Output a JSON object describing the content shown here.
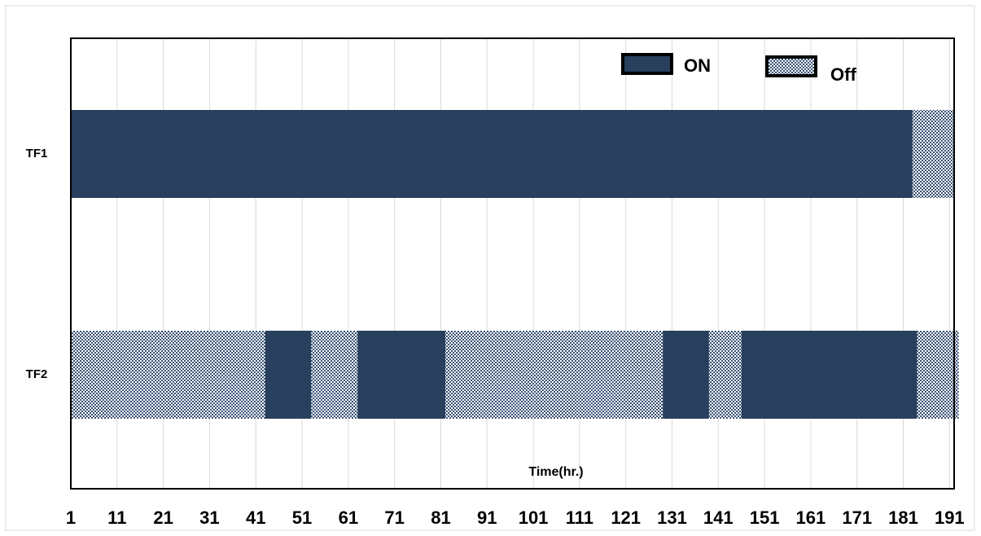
{
  "chart_data": {
    "type": "gantt",
    "xlabel": "Time(hr.)",
    "categories": [
      "TF1",
      "TF2"
    ],
    "legend": [
      {
        "name": "ON",
        "color": "#283f5e",
        "pattern": false
      },
      {
        "name": "Off",
        "color": "#3a5275",
        "pattern": true
      }
    ],
    "rows": [
      [
        {
          "legend": 0,
          "value": 182
        },
        {
          "legend": 1,
          "value": 9
        }
      ],
      [
        {
          "legend": 1,
          "value": 42
        },
        {
          "legend": 0,
          "value": 10
        },
        {
          "legend": 1,
          "value": 10
        },
        {
          "legend": 0,
          "value": 19
        },
        {
          "legend": 1,
          "value": 47
        },
        {
          "legend": 0,
          "value": 10
        },
        {
          "legend": 1,
          "value": 7
        },
        {
          "legend": 0,
          "value": 38
        },
        {
          "legend": 1,
          "value": 9
        }
      ]
    ],
    "xlim": [
      1,
      192
    ],
    "xticks": [
      1,
      11,
      21,
      31,
      41,
      51,
      61,
      71,
      81,
      91,
      101,
      111,
      121,
      131,
      141,
      151,
      161,
      171,
      181,
      191
    ],
    "grid": true
  }
}
